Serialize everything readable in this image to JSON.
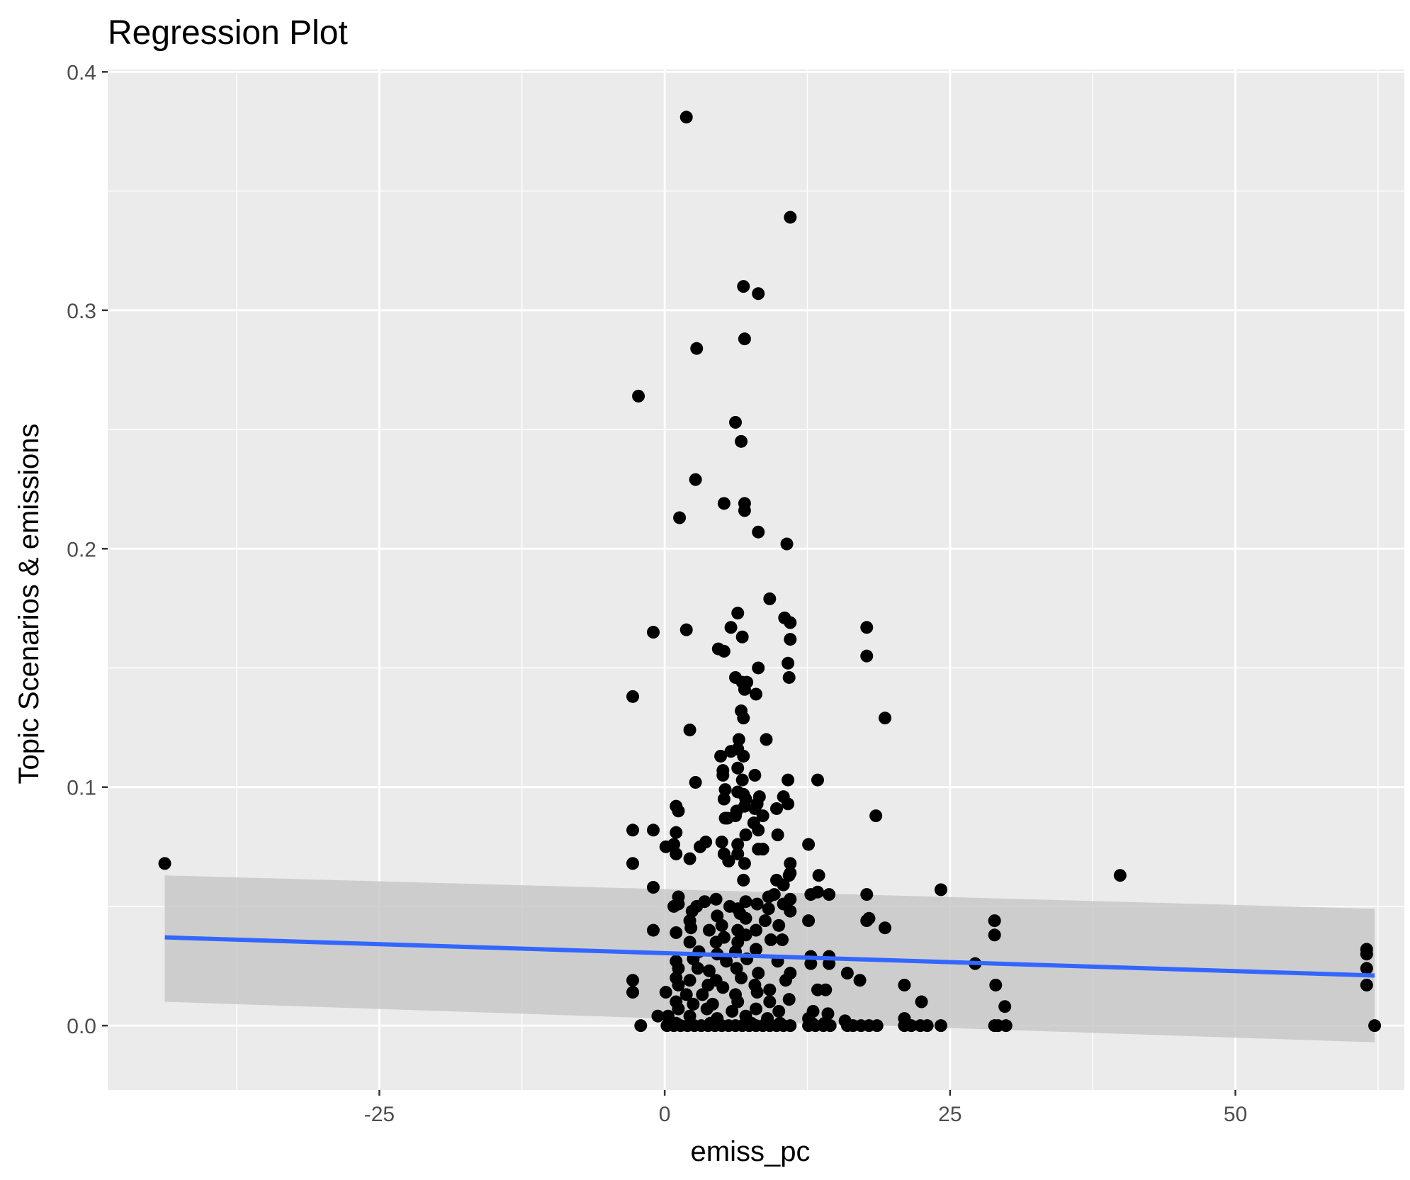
{
  "chart_data": {
    "type": "scatter",
    "title": "Regression Plot",
    "xlabel": "emiss_pc",
    "ylabel": "Topic Scenarios & emissions",
    "xlim": [
      -48.8,
      64.8
    ],
    "ylim": [
      -0.027,
      0.401
    ],
    "x_ticks": [
      -25,
      0,
      25,
      50
    ],
    "x_tick_labels": [
      "-25",
      "0",
      "25",
      "50"
    ],
    "y_ticks": [
      0.0,
      0.1,
      0.2,
      0.3,
      0.4
    ],
    "y_tick_labels": [
      "0.0",
      "0.1",
      "0.2",
      "0.3",
      "0.4"
    ],
    "grid": true,
    "background_color": "#ebebeb",
    "point_color": "#000000",
    "fit_line_color": "#3366ff",
    "band_color": "#c6c6c6",
    "fit_line": {
      "x": [
        -43.8,
        62.2
      ],
      "y": [
        0.037,
        0.021
      ],
      "ci_upper": [
        0.063,
        0.049
      ],
      "ci_lower": [
        0.01,
        -0.007
      ]
    },
    "points": [
      [
        -43.8,
        0.068
      ],
      [
        1.9,
        0.381
      ],
      [
        11.0,
        0.339
      ],
      [
        6.9,
        0.31
      ],
      [
        8.2,
        0.307
      ],
      [
        2.8,
        0.284
      ],
      [
        7.0,
        0.288
      ],
      [
        -2.3,
        0.264
      ],
      [
        6.2,
        0.253
      ],
      [
        6.7,
        0.245
      ],
      [
        2.7,
        0.229
      ],
      [
        5.2,
        0.219
      ],
      [
        7.0,
        0.219
      ],
      [
        7.0,
        0.216
      ],
      [
        1.3,
        0.213
      ],
      [
        8.2,
        0.207
      ],
      [
        10.7,
        0.202
      ],
      [
        9.2,
        0.179
      ],
      [
        6.4,
        0.173
      ],
      [
        -1.0,
        0.165
      ],
      [
        1.9,
        0.166
      ],
      [
        5.8,
        0.167
      ],
      [
        10.5,
        0.171
      ],
      [
        11.0,
        0.169
      ],
      [
        17.7,
        0.167
      ],
      [
        4.7,
        0.158
      ],
      [
        5.2,
        0.157
      ],
      [
        6.8,
        0.163
      ],
      [
        11.0,
        0.162
      ],
      [
        17.7,
        0.155
      ],
      [
        10.8,
        0.152
      ],
      [
        8.2,
        0.15
      ],
      [
        6.2,
        0.146
      ],
      [
        6.8,
        0.144
      ],
      [
        7.2,
        0.144
      ],
      [
        10.9,
        0.146
      ],
      [
        7.0,
        0.141
      ],
      [
        -2.8,
        0.138
      ],
      [
        8.0,
        0.139
      ],
      [
        6.7,
        0.132
      ],
      [
        6.9,
        0.129
      ],
      [
        19.3,
        0.129
      ],
      [
        2.2,
        0.124
      ],
      [
        8.9,
        0.12
      ],
      [
        6.5,
        0.12
      ],
      [
        4.9,
        0.113
      ],
      [
        5.8,
        0.115
      ],
      [
        6.4,
        0.116
      ],
      [
        6.9,
        0.113
      ],
      [
        5.1,
        0.107
      ],
      [
        6.4,
        0.108
      ],
      [
        5.1,
        0.105
      ],
      [
        7.9,
        0.105
      ],
      [
        2.7,
        0.102
      ],
      [
        6.8,
        0.103
      ],
      [
        10.8,
        0.103
      ],
      [
        13.4,
        0.103
      ],
      [
        5.3,
        0.099
      ],
      [
        6.4,
        0.098
      ],
      [
        6.9,
        0.097
      ],
      [
        8.3,
        0.096
      ],
      [
        10.4,
        0.096
      ],
      [
        5.2,
        0.095
      ],
      [
        1.0,
        0.092
      ],
      [
        7.1,
        0.095
      ],
      [
        8.1,
        0.093
      ],
      [
        10.8,
        0.093
      ],
      [
        1.2,
        0.09
      ],
      [
        6.3,
        0.09
      ],
      [
        7.0,
        0.092
      ],
      [
        7.9,
        0.091
      ],
      [
        9.8,
        0.091
      ],
      [
        5.3,
        0.087
      ],
      [
        6.2,
        0.088
      ],
      [
        8.6,
        0.088
      ],
      [
        18.5,
        0.088
      ],
      [
        5.5,
        0.087
      ],
      [
        7.8,
        0.085
      ],
      [
        -2.8,
        0.082
      ],
      [
        -1.0,
        0.082
      ],
      [
        1.0,
        0.081
      ],
      [
        8.2,
        0.082
      ],
      [
        7.1,
        0.08
      ],
      [
        9.9,
        0.08
      ],
      [
        12.6,
        0.076
      ],
      [
        0.1,
        0.075
      ],
      [
        0.8,
        0.076
      ],
      [
        3.6,
        0.077
      ],
      [
        5.0,
        0.077
      ],
      [
        6.4,
        0.076
      ],
      [
        3.1,
        0.075
      ],
      [
        8.2,
        0.074
      ],
      [
        8.6,
        0.074
      ],
      [
        1.0,
        0.072
      ],
      [
        2.2,
        0.07
      ],
      [
        5.2,
        0.072
      ],
      [
        6.4,
        0.072
      ],
      [
        -2.8,
        0.068
      ],
      [
        5.6,
        0.069
      ],
      [
        7.0,
        0.068
      ],
      [
        11.0,
        0.068
      ],
      [
        11.0,
        0.064
      ],
      [
        13.5,
        0.063
      ],
      [
        10.9,
        0.063
      ],
      [
        39.9,
        0.063
      ],
      [
        6.9,
        0.061
      ],
      [
        9.8,
        0.061
      ],
      [
        -1.0,
        0.058
      ],
      [
        10.4,
        0.059
      ],
      [
        24.2,
        0.057
      ],
      [
        12.8,
        0.055
      ],
      [
        13.4,
        0.056
      ],
      [
        14.4,
        0.055
      ],
      [
        17.7,
        0.055
      ],
      [
        1.2,
        0.054
      ],
      [
        3.5,
        0.052
      ],
      [
        4.5,
        0.053
      ],
      [
        9.1,
        0.054
      ],
      [
        9.6,
        0.055
      ],
      [
        11.0,
        0.053
      ],
      [
        1.2,
        0.051
      ],
      [
        2.8,
        0.05
      ],
      [
        5.7,
        0.05
      ],
      [
        7.1,
        0.052
      ],
      [
        8.1,
        0.051
      ],
      [
        10.4,
        0.051
      ],
      [
        0.8,
        0.05
      ],
      [
        2.4,
        0.048
      ],
      [
        6.4,
        0.049
      ],
      [
        9.1,
        0.049
      ],
      [
        11.0,
        0.048
      ],
      [
        2.2,
        0.044
      ],
      [
        4.6,
        0.046
      ],
      [
        6.6,
        0.047
      ],
      [
        7.1,
        0.045
      ],
      [
        8.8,
        0.044
      ],
      [
        12.6,
        0.044
      ],
      [
        17.7,
        0.044
      ],
      [
        17.9,
        0.045
      ],
      [
        28.9,
        0.044
      ],
      [
        2.3,
        0.041
      ],
      [
        5.0,
        0.042
      ],
      [
        6.4,
        0.04
      ],
      [
        -1.0,
        0.04
      ],
      [
        1.0,
        0.039
      ],
      [
        3.9,
        0.04
      ],
      [
        8.0,
        0.04
      ],
      [
        10.0,
        0.042
      ],
      [
        19.3,
        0.041
      ],
      [
        5.2,
        0.037
      ],
      [
        7.1,
        0.038
      ],
      [
        28.9,
        0.038
      ],
      [
        2.2,
        0.035
      ],
      [
        4.5,
        0.035
      ],
      [
        6.4,
        0.035
      ],
      [
        9.3,
        0.036
      ],
      [
        10.3,
        0.036
      ],
      [
        3.0,
        0.031
      ],
      [
        4.6,
        0.03
      ],
      [
        6.2,
        0.031
      ],
      [
        8.0,
        0.032
      ],
      [
        12.8,
        0.029
      ],
      [
        14.4,
        0.029
      ],
      [
        61.5,
        0.032
      ],
      [
        61.5,
        0.03
      ],
      [
        1.0,
        0.027
      ],
      [
        2.5,
        0.028
      ],
      [
        5.4,
        0.027
      ],
      [
        7.2,
        0.028
      ],
      [
        9.9,
        0.027
      ],
      [
        12.8,
        0.026
      ],
      [
        14.4,
        0.026
      ],
      [
        27.2,
        0.026
      ],
      [
        61.5,
        0.024
      ],
      [
        1.2,
        0.024
      ],
      [
        2.9,
        0.024
      ],
      [
        3.9,
        0.023
      ],
      [
        6.3,
        0.024
      ],
      [
        8.2,
        0.022
      ],
      [
        11.0,
        0.022
      ],
      [
        16.0,
        0.022
      ],
      [
        1.0,
        0.02
      ],
      [
        2.2,
        0.019
      ],
      [
        4.5,
        0.019
      ],
      [
        6.7,
        0.02
      ],
      [
        10.6,
        0.019
      ],
      [
        17.1,
        0.019
      ],
      [
        -2.8,
        0.019
      ],
      [
        1.2,
        0.017
      ],
      [
        3.8,
        0.017
      ],
      [
        5.1,
        0.016
      ],
      [
        7.9,
        0.017
      ],
      [
        9.2,
        0.015
      ],
      [
        13.4,
        0.015
      ],
      [
        14.1,
        0.015
      ],
      [
        21.0,
        0.017
      ],
      [
        29.0,
        0.017
      ],
      [
        61.5,
        0.017
      ],
      [
        -2.8,
        0.014
      ],
      [
        0.1,
        0.014
      ],
      [
        1.9,
        0.013
      ],
      [
        3.3,
        0.013
      ],
      [
        6.2,
        0.013
      ],
      [
        8.1,
        0.014
      ],
      [
        10.9,
        0.011
      ],
      [
        22.5,
        0.01
      ],
      [
        1.0,
        0.01
      ],
      [
        2.5,
        0.009
      ],
      [
        4.2,
        0.009
      ],
      [
        6.4,
        0.01
      ],
      [
        9.2,
        0.01
      ],
      [
        29.8,
        0.008
      ],
      [
        1.2,
        0.007
      ],
      [
        3.7,
        0.007
      ],
      [
        5.9,
        0.006
      ],
      [
        8.0,
        0.007
      ],
      [
        10.0,
        0.006
      ],
      [
        13.0,
        0.006
      ],
      [
        -0.6,
        0.004
      ],
      [
        0.3,
        0.004
      ],
      [
        2.2,
        0.004
      ],
      [
        4.6,
        0.003
      ],
      [
        7.1,
        0.004
      ],
      [
        9.0,
        0.003
      ],
      [
        14.3,
        0.005
      ],
      [
        21.0,
        0.003
      ],
      [
        12.6,
        0.003
      ],
      [
        15.8,
        0.002
      ],
      [
        -2.1,
        0.0
      ],
      [
        0.2,
        0.0
      ],
      [
        0.8,
        0.0
      ],
      [
        1.4,
        0.0
      ],
      [
        2.0,
        0.0
      ],
      [
        2.6,
        0.0
      ],
      [
        3.2,
        0.0
      ],
      [
        3.8,
        0.0
      ],
      [
        4.4,
        0.0
      ],
      [
        5.0,
        0.0
      ],
      [
        5.6,
        0.0
      ],
      [
        6.2,
        0.0
      ],
      [
        6.8,
        0.0
      ],
      [
        7.4,
        0.0
      ],
      [
        8.0,
        0.0
      ],
      [
        8.6,
        0.0
      ],
      [
        9.2,
        0.0
      ],
      [
        9.8,
        0.0
      ],
      [
        10.4,
        0.0
      ],
      [
        11.0,
        0.0
      ],
      [
        12.6,
        0.0
      ],
      [
        13.2,
        0.0
      ],
      [
        13.9,
        0.0
      ],
      [
        14.5,
        0.0
      ],
      [
        16.0,
        0.0
      ],
      [
        16.5,
        0.0
      ],
      [
        17.2,
        0.0
      ],
      [
        17.9,
        0.0
      ],
      [
        18.6,
        0.0
      ],
      [
        21.0,
        0.0
      ],
      [
        21.6,
        0.0
      ],
      [
        22.4,
        0.0
      ],
      [
        23.0,
        0.0
      ],
      [
        24.2,
        0.0
      ],
      [
        28.9,
        0.0
      ],
      [
        29.2,
        0.0
      ],
      [
        29.9,
        0.0
      ],
      [
        62.2,
        0.0
      ],
      [
        1.0,
        0.001
      ],
      [
        4.0,
        0.001
      ],
      [
        7.6,
        0.001
      ],
      [
        10.1,
        0.001
      ],
      [
        12.9,
        0.001
      ],
      [
        14.0,
        0.001
      ]
    ]
  }
}
